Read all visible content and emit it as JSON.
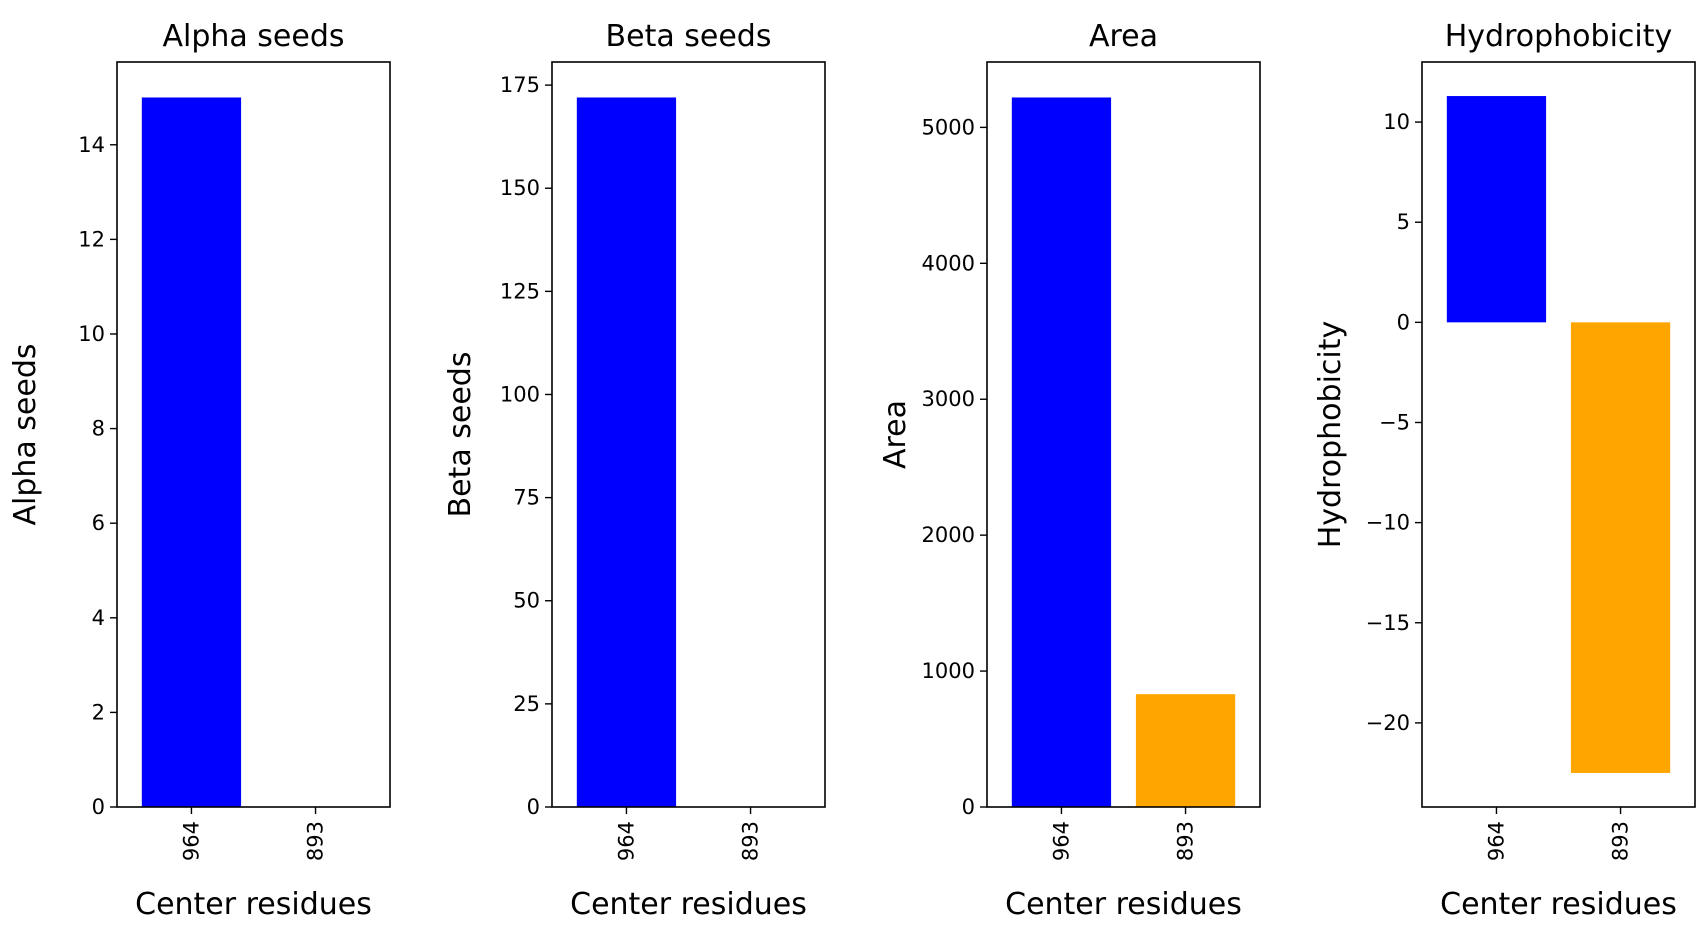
{
  "chart_data": [
    {
      "type": "bar",
      "title": "Alpha seeds",
      "xlabel": "Center residues",
      "ylabel": "Alpha seeds",
      "categories": [
        "964",
        "893"
      ],
      "values": [
        15,
        0
      ],
      "colors": [
        "#0000ff",
        "#ffa500"
      ],
      "ylim": [
        0,
        15.75
      ],
      "yticks": [
        0,
        2,
        4,
        6,
        8,
        10,
        12,
        14
      ],
      "grid": false
    },
    {
      "type": "bar",
      "title": "Beta seeds",
      "xlabel": "Center residues",
      "ylabel": "Beta seeds",
      "categories": [
        "964",
        "893"
      ],
      "values": [
        172,
        0
      ],
      "colors": [
        "#0000ff",
        "#ffa500"
      ],
      "ylim": [
        0,
        180.6
      ],
      "yticks": [
        0,
        25,
        50,
        75,
        100,
        125,
        150,
        175
      ],
      "grid": false
    },
    {
      "type": "bar",
      "title": "Area",
      "xlabel": "Center residues",
      "ylabel": "Area",
      "categories": [
        "964",
        "893"
      ],
      "values": [
        5220,
        830
      ],
      "colors": [
        "#0000ff",
        "#ffa500"
      ],
      "ylim": [
        0,
        5481
      ],
      "yticks": [
        0,
        1000,
        2000,
        3000,
        4000,
        5000
      ],
      "grid": false
    },
    {
      "type": "bar",
      "title": "Hydrophobicity",
      "xlabel": "Center residues",
      "ylabel": "Hydrophobicity",
      "categories": [
        "964",
        "893"
      ],
      "values": [
        11.3,
        -22.5
      ],
      "colors": [
        "#0000ff",
        "#ffa500"
      ],
      "ylim": [
        -24.2,
        13.0
      ],
      "yticks": [
        -20,
        -15,
        -10,
        -5,
        0,
        5,
        10
      ],
      "ytick_labels": [
        "−20",
        "−15",
        "−10",
        "−5",
        "0",
        "5",
        "10"
      ],
      "grid": false
    }
  ]
}
